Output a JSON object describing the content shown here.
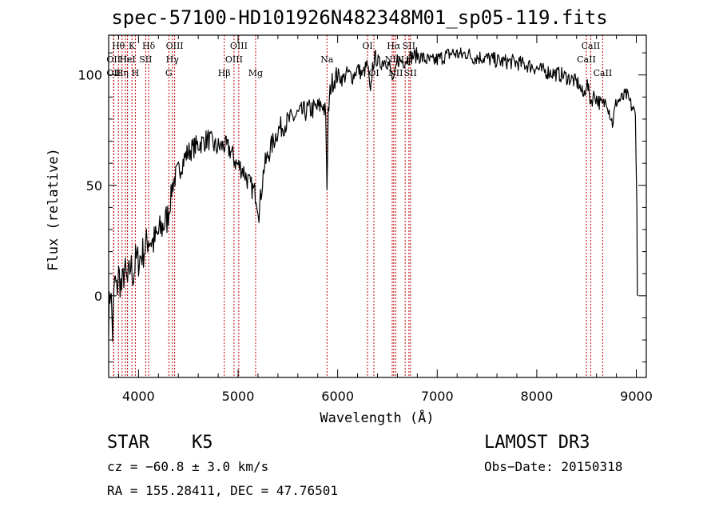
{
  "chart_data": {
    "type": "line",
    "title": "spec-57100-HD101926N482348M01_sp05-119.fits",
    "xlabel": "Wavelength (Å)",
    "ylabel": "Flux (relative)",
    "xlim": [
      3700,
      9100
    ],
    "ylim": [
      -37,
      118
    ],
    "xticks": [
      4000,
      5000,
      6000,
      7000,
      8000,
      9000
    ],
    "yticks": [
      0,
      50,
      100
    ],
    "grid": false,
    "series": [
      {
        "name": "flux",
        "color": "#000000",
        "x": [
          3700,
          3720,
          3740,
          3760,
          3780,
          3800,
          3830,
          3860,
          3890,
          3920,
          3950,
          3970,
          4000,
          4050,
          4100,
          4150,
          4200,
          4250,
          4300,
          4340,
          4380,
          4420,
          4480,
          4550,
          4620,
          4700,
          4780,
          4860,
          4920,
          4980,
          5050,
          5120,
          5180,
          5210,
          5260,
          5320,
          5400,
          5500,
          5600,
          5700,
          5800,
          5850,
          5880,
          5893,
          5905,
          5930,
          5960,
          6000,
          6050,
          6100,
          6150,
          6200,
          6250,
          6300,
          6330,
          6350,
          6380,
          6420,
          6480,
          6520,
          6563,
          6600,
          6660,
          6720,
          6800,
          6880,
          6950,
          7050,
          7150,
          7250,
          7300,
          7350,
          7450,
          7550,
          7650,
          7750,
          7850,
          7950,
          8050,
          8150,
          8250,
          8350,
          8420,
          8470,
          8500,
          8542,
          8580,
          8620,
          8662,
          8700,
          8760,
          8800,
          8850,
          8900,
          8950,
          8990,
          9005,
          9010
        ],
        "y": [
          -10,
          5,
          -18,
          8,
          2,
          10,
          3,
          12,
          5,
          14,
          9,
          16,
          16,
          20,
          26,
          24,
          28,
          32,
          36,
          50,
          55,
          58,
          64,
          67,
          69,
          71,
          67,
          68,
          66,
          60,
          57,
          50,
          46,
          38,
          58,
          66,
          75,
          79,
          82,
          84,
          85,
          87,
          82,
          48,
          82,
          95,
          98,
          100,
          98,
          101,
          99,
          103,
          100,
          105,
          90,
          104,
          108,
          105,
          107,
          104,
          96,
          107,
          106,
          108,
          109,
          107,
          106,
          108,
          110,
          109,
          110,
          108,
          108,
          107,
          106,
          106,
          105,
          104,
          102,
          101,
          100,
          98,
          96,
          90,
          97,
          88,
          91,
          88,
          86,
          89,
          78,
          88,
          89,
          91,
          86,
          82,
          40,
          0
        ]
      }
    ],
    "lines": [
      {
        "wave": 3750,
        "label": "OII",
        "row": 1
      },
      {
        "wave": 3750,
        "label": "OII",
        "row": 2
      },
      {
        "wave": 3798,
        "label": "Hθ",
        "row": 0
      },
      {
        "wave": 3835,
        "label": "Hη",
        "row": 2
      },
      {
        "wave": 3869,
        "label": "Hε",
        "row": 1
      },
      {
        "wave": 3889,
        "label": "HeI",
        "row": 1
      },
      {
        "wave": 3934,
        "label": "K",
        "row": 0
      },
      {
        "wave": 3968,
        "label": "H",
        "row": 2
      },
      {
        "wave": 4072,
        "label": "SII",
        "row": 1
      },
      {
        "wave": 4102,
        "label": "Hδ",
        "row": 0
      },
      {
        "wave": 4304,
        "label": "G",
        "row": 2
      },
      {
        "wave": 4340,
        "label": "Hγ",
        "row": 1
      },
      {
        "wave": 4363,
        "label": "OIII",
        "row": 0
      },
      {
        "wave": 4861,
        "label": "Hβ",
        "row": 2
      },
      {
        "wave": 4959,
        "label": "OIII",
        "row": 1
      },
      {
        "wave": 5007,
        "label": "OIII",
        "row": 0
      },
      {
        "wave": 5176,
        "label": "Mg",
        "row": 2
      },
      {
        "wave": 5893,
        "label": "Na",
        "row": 1
      },
      {
        "wave": 6300,
        "label": "OI",
        "row": 0
      },
      {
        "wave": 6364,
        "label": "OI",
        "row": 2
      },
      {
        "wave": 6548,
        "label": "NII",
        "row": 1
      },
      {
        "wave": 6563,
        "label": "Hα",
        "row": 0
      },
      {
        "wave": 6583,
        "label": "NII",
        "row": 2
      },
      {
        "wave": 6678,
        "label": "Li",
        "row": 1
      },
      {
        "wave": 6716,
        "label": "SII",
        "row": 0
      },
      {
        "wave": 6731,
        "label": "SII",
        "row": 2
      },
      {
        "wave": 8498,
        "label": "CaII",
        "row": 1
      },
      {
        "wave": 8542,
        "label": "CaII",
        "row": 0
      },
      {
        "wave": 8662,
        "label": "CaII",
        "row": 2
      }
    ]
  },
  "info": {
    "obj_type": "STAR",
    "obj_class": "K5",
    "survey": "LAMOST DR3",
    "cz": "cz = −60.8 ± 3.0 km/s",
    "obs_date": "Obs−Date: 20150318",
    "radec": "RA = 155.28411, DEC =  47.76501"
  }
}
